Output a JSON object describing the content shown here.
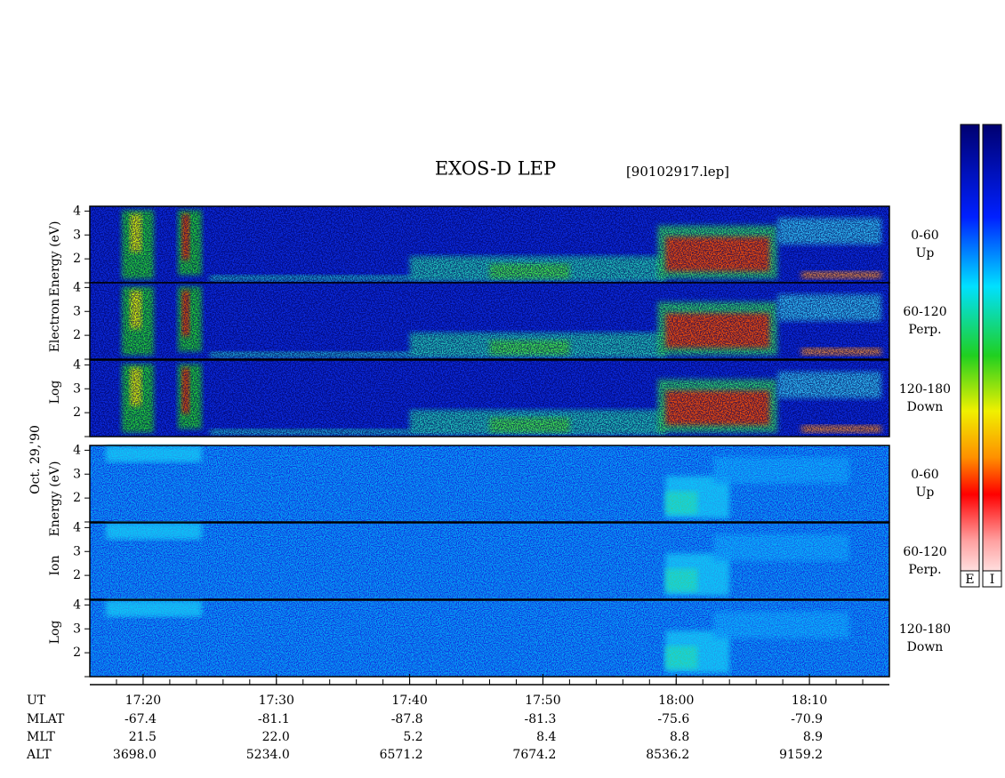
{
  "chart_data": {
    "type": "spectrogram",
    "title": "EXOS-D LEP",
    "file": "[90102917.lep]",
    "date": "Oct. 29,'90",
    "ylim": [
      1,
      4.2
    ],
    "yticks": [
      2,
      3,
      4
    ],
    "xlim": [
      "17:16",
      "18:16"
    ],
    "xticks": [
      "17:20",
      "17:30",
      "17:40",
      "17:50",
      "18:00",
      "18:10"
    ],
    "groups": [
      {
        "ylabel": [
          "Log",
          "Electron",
          "Energy (eV)"
        ],
        "panels": [
          {
            "pitch": "0-60",
            "direction": "Up"
          },
          {
            "pitch": "60-120",
            "direction": "Perp."
          },
          {
            "pitch": "120-180",
            "direction": "Down"
          }
        ]
      },
      {
        "ylabel": [
          "Log",
          "Ion",
          "Energy (eV)"
        ],
        "panels": [
          {
            "pitch": "0-60",
            "direction": "Up"
          },
          {
            "pitch": "60-120",
            "direction": "Perp."
          },
          {
            "pitch": "120-180",
            "direction": "Down"
          }
        ]
      }
    ],
    "colorbars": [
      "E",
      "I"
    ],
    "ephemeris": {
      "row_labels": [
        "UT",
        "MLAT",
        "MLT",
        "ALT"
      ],
      "rows": [
        [
          "-67.4",
          "-81.1",
          "-87.8",
          "-81.3",
          "-75.6",
          "-70.9"
        ],
        [
          "21.5",
          "22.0",
          "5.2",
          "8.4",
          "8.8",
          "8.9"
        ],
        [
          "3698.0",
          "5234.0",
          "6571.2",
          "7674.2",
          "8536.2",
          "9159.2"
        ]
      ]
    }
  }
}
